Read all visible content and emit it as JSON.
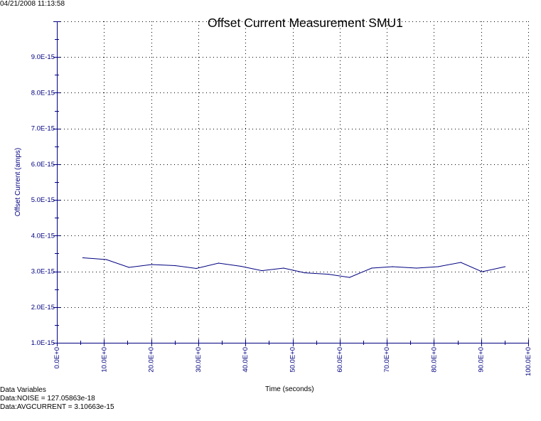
{
  "header": {
    "timestamp": "04/21/2008 11:13:58"
  },
  "colors": {
    "axis": "#000080",
    "series": "#000080",
    "grid": "#000000",
    "background": "#ffffff"
  },
  "variables": {
    "heading": "Data Variables",
    "lines": [
      "Data:NOISE = 127.05863e-18",
      "Data:AVGCURRENT = 3.10663e-15"
    ]
  },
  "chart_data": {
    "type": "line",
    "title": "Offset Current Measurement SMU1",
    "xlabel": "Time (seconds)",
    "ylabel": "Offset Current (amps)",
    "xlim": [
      0,
      100
    ],
    "ylim": [
      1e-15,
      1e-14
    ],
    "grid": true,
    "x_ticks": [
      0,
      10,
      20,
      30,
      40,
      50,
      60,
      70,
      80,
      90,
      100
    ],
    "x_tick_labels": [
      "0.0E+0",
      "10.0E+0",
      "20.0E+0",
      "30.0E+0",
      "40.0E+0",
      "50.0E+0",
      "60.0E+0",
      "70.0E+0",
      "80.0E+0",
      "90.0E+0",
      "100.0E+0"
    ],
    "y_ticks": [
      1e-15,
      2e-15,
      3e-15,
      4e-15,
      5e-15,
      6e-15,
      7e-15,
      8e-15,
      9e-15
    ],
    "y_tick_labels": [
      "1.0E-15",
      "2.0E-15",
      "3.0E-15",
      "4.0E-15",
      "5.0E-15",
      "6.0E-15",
      "7.0E-15",
      "8.0E-15",
      "9.0E-15"
    ],
    "series": [
      {
        "x": [
          5.5,
          10.5,
          15.3,
          20.1,
          25.1,
          29.6,
          34.3,
          39.1,
          43.5,
          48.1,
          52.6,
          57.6,
          62.1,
          66.8,
          71.2,
          76.3,
          80.9,
          85.7,
          90.2,
          95.1
        ],
        "y": [
          3.38e-15,
          3.33e-15,
          3.11e-15,
          3.19e-15,
          3.16e-15,
          3.08e-15,
          3.23e-15,
          3.14e-15,
          3.02e-15,
          3.09e-15,
          2.96e-15,
          2.92e-15,
          2.83e-15,
          3.09e-15,
          3.13e-15,
          3.09e-15,
          3.13e-15,
          3.25e-15,
          2.99e-15,
          3.13e-15
        ]
      }
    ]
  }
}
